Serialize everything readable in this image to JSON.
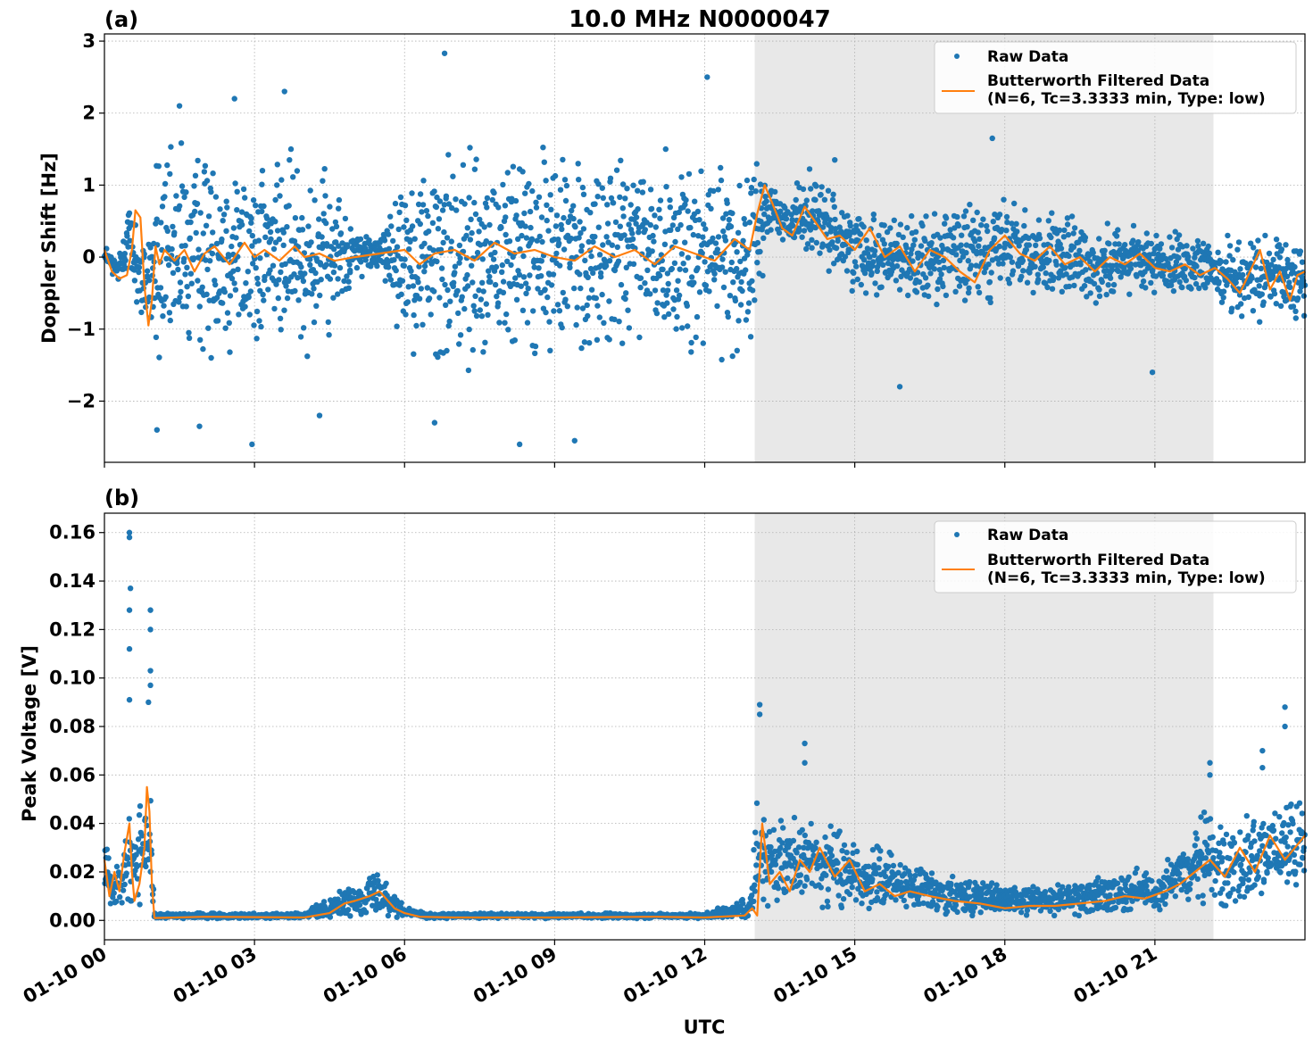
{
  "figure": {
    "title": "10.0 MHz N0000047",
    "xlabel": "UTC",
    "x_tick_labels": [
      "01-10 00",
      "01-10 03",
      "01-10 06",
      "01-10 09",
      "01-10 12",
      "01-10 15",
      "01-10 18",
      "01-10 21"
    ],
    "colors": {
      "raw": "#1f77b4",
      "filtered": "#ff7f0e",
      "shade": "#e8e8e8",
      "grid": "#b0b0b0"
    }
  },
  "chart_data": [
    {
      "panel_label": "(a)",
      "type": "scatter",
      "ylabel": "Doppler Shift [Hz]",
      "x_unit": "hours UTC since 01-10 00",
      "xlim": [
        0,
        24
      ],
      "ylim": [
        -2.85,
        3.1
      ],
      "yticks": [
        -2,
        -1,
        0,
        1,
        2,
        3
      ],
      "ytick_labels": [
        "−2",
        "−1",
        "0",
        "1",
        "2",
        "3"
      ],
      "shaded_x_range": [
        13.0,
        22.17
      ],
      "grid": true,
      "legend_placement": "top-right",
      "legend": [
        "Raw Data",
        "Butterworth Filtered Data",
        "(N=6, Tc=3.3333 min, Type: low)"
      ],
      "series": [
        {
          "name": "Raw Data",
          "style": "points",
          "envelope_x": [
            0,
            0.25,
            0.5,
            0.75,
            1.0,
            1.5,
            2.0,
            3.0,
            4.0,
            4.5,
            5.0,
            5.5,
            6.0,
            6.5,
            7,
            8,
            9,
            10,
            11,
            12,
            12.9,
            13.3,
            13.7,
            14,
            14.5,
            15,
            16,
            17,
            18,
            19,
            20,
            21,
            22,
            23,
            23.99
          ],
          "envelope_lo": [
            -0.1,
            -0.4,
            -0.2,
            -1.0,
            -1.5,
            -1.6,
            -1.4,
            -1.4,
            -1.4,
            -1.2,
            -0.3,
            -0.2,
            -1.3,
            -1.5,
            -1.6,
            -1.5,
            -1.5,
            -1.4,
            -1.3,
            -1.5,
            -1.3,
            0.3,
            0.1,
            0.0,
            -0.2,
            -0.5,
            -0.6,
            -0.7,
            -0.6,
            -0.6,
            -0.7,
            -0.5,
            -0.6,
            -0.9,
            -0.9
          ],
          "envelope_hi": [
            0.2,
            0.0,
            0.8,
            0.2,
            1.4,
            1.6,
            1.5,
            1.5,
            1.5,
            1.2,
            0.4,
            0.3,
            1.3,
            1.6,
            1.6,
            1.6,
            1.5,
            1.5,
            1.5,
            1.5,
            1.4,
            1.1,
            0.8,
            1.3,
            0.9,
            0.7,
            0.6,
            0.7,
            0.8,
            0.6,
            0.5,
            0.4,
            0.3,
            0.3,
            0.3
          ],
          "outliers": [
            {
              "x": 1.05,
              "y": -2.4
            },
            {
              "x": 1.5,
              "y": 2.1
            },
            {
              "x": 1.9,
              "y": -2.35
            },
            {
              "x": 2.6,
              "y": 2.2
            },
            {
              "x": 2.95,
              "y": -2.6
            },
            {
              "x": 3.6,
              "y": 2.3
            },
            {
              "x": 4.3,
              "y": -2.2
            },
            {
              "x": 6.8,
              "y": 2.83
            },
            {
              "x": 6.6,
              "y": -2.3
            },
            {
              "x": 8.3,
              "y": -2.6
            },
            {
              "x": 9.4,
              "y": -2.55
            },
            {
              "x": 12.05,
              "y": 2.5
            },
            {
              "x": 14.6,
              "y": 1.35
            },
            {
              "x": 15.9,
              "y": -1.8
            },
            {
              "x": 17.75,
              "y": 1.65
            },
            {
              "x": 20.95,
              "y": -1.6
            }
          ]
        },
        {
          "name": "Butterworth Filtered Data",
          "style": "line",
          "x": [
            0,
            0.15,
            0.3,
            0.45,
            0.55,
            0.62,
            0.72,
            0.8,
            0.88,
            0.95,
            1.02,
            1.1,
            1.2,
            1.4,
            1.6,
            1.8,
            2.0,
            2.2,
            2.5,
            2.8,
            3.0,
            3.2,
            3.5,
            3.8,
            4.0,
            4.3,
            4.6,
            5.0,
            5.5,
            6.0,
            6.3,
            6.6,
            7.0,
            7.4,
            7.8,
            8.2,
            8.6,
            9.0,
            9.4,
            9.8,
            10.2,
            10.6,
            11.0,
            11.4,
            11.8,
            12.2,
            12.6,
            12.9,
            13.05,
            13.2,
            13.35,
            13.55,
            13.75,
            14.0,
            14.2,
            14.45,
            14.7,
            15.0,
            15.3,
            15.6,
            15.9,
            16.2,
            16.5,
            16.8,
            17.1,
            17.4,
            17.7,
            18.0,
            18.3,
            18.6,
            18.9,
            19.2,
            19.5,
            19.8,
            20.1,
            20.4,
            20.7,
            21.0,
            21.3,
            21.6,
            21.9,
            22.2,
            22.45,
            22.7,
            22.9,
            23.1,
            23.3,
            23.5,
            23.7,
            23.85,
            24.0
          ],
          "y": [
            0.1,
            -0.2,
            -0.3,
            -0.25,
            0.1,
            0.65,
            0.55,
            -0.4,
            -0.95,
            -0.6,
            0.15,
            -0.1,
            0.1,
            -0.05,
            0.1,
            -0.2,
            0.05,
            0.15,
            -0.1,
            0.2,
            0.0,
            0.1,
            -0.05,
            0.15,
            0.0,
            0.05,
            -0.05,
            0.0,
            0.05,
            0.1,
            -0.1,
            0.05,
            0.1,
            -0.05,
            0.2,
            0.05,
            0.1,
            0.0,
            -0.05,
            0.15,
            0.0,
            0.1,
            -0.1,
            0.15,
            0.05,
            -0.05,
            0.25,
            0.1,
            0.6,
            1.0,
            0.75,
            0.4,
            0.3,
            0.7,
            0.5,
            0.25,
            0.3,
            0.1,
            0.4,
            0.0,
            0.15,
            -0.2,
            0.1,
            0.0,
            -0.2,
            -0.35,
            0.1,
            0.3,
            0.05,
            -0.05,
            0.15,
            -0.1,
            0.0,
            -0.2,
            0.0,
            -0.1,
            0.05,
            -0.15,
            -0.2,
            -0.1,
            -0.25,
            -0.15,
            -0.3,
            -0.5,
            -0.2,
            0.1,
            -0.45,
            -0.2,
            -0.6,
            -0.25,
            -0.2
          ]
        }
      ]
    },
    {
      "panel_label": "(b)",
      "type": "scatter",
      "ylabel": "Peak Voltage [V]",
      "x_unit": "hours UTC since 01-10 00",
      "xlim": [
        0,
        24
      ],
      "ylim": [
        -0.008,
        0.168
      ],
      "yticks": [
        0.0,
        0.02,
        0.04,
        0.06,
        0.08,
        0.1,
        0.12,
        0.14,
        0.16
      ],
      "ytick_labels": [
        "0.00",
        "0.02",
        "0.04",
        "0.06",
        "0.08",
        "0.10",
        "0.12",
        "0.14",
        "0.16"
      ],
      "shaded_x_range": [
        13.0,
        22.17
      ],
      "grid": true,
      "legend_placement": "top-right",
      "legend": [
        "Raw Data",
        "Butterworth Filtered Data",
        "(N=6, Tc=3.3333 min, Type: low)"
      ],
      "series": [
        {
          "name": "Raw Data",
          "style": "points",
          "envelope_x": [
            0,
            0.2,
            0.4,
            0.5,
            0.6,
            0.8,
            0.85,
            0.95,
            1.0,
            2,
            4,
            4.5,
            5.0,
            5.5,
            6.0,
            6.5,
            9,
            12,
            12.9,
            13.05,
            13.3,
            13.6,
            14.0,
            14.5,
            15,
            15.5,
            16,
            17,
            18,
            19,
            20,
            20.5,
            21,
            21.5,
            22,
            22.5,
            23,
            23.5,
            23.99
          ],
          "envelope_lo": [
            0.005,
            0.005,
            0.005,
            0.005,
            0.005,
            0.008,
            0.008,
            0.003,
            0.0008,
            0.0008,
            0.0008,
            0.001,
            0.002,
            0.002,
            0.001,
            0.0008,
            0.0008,
            0.0008,
            0.0008,
            0.005,
            0.005,
            0.005,
            0.005,
            0.005,
            0.004,
            0.003,
            0.003,
            0.002,
            0.002,
            0.002,
            0.002,
            0.003,
            0.003,
            0.004,
            0.004,
            0.005,
            0.006,
            0.01,
            0.012
          ],
          "envelope_hi": [
            0.04,
            0.025,
            0.03,
            0.045,
            0.035,
            0.065,
            0.07,
            0.045,
            0.003,
            0.003,
            0.003,
            0.01,
            0.015,
            0.022,
            0.006,
            0.003,
            0.003,
            0.003,
            0.01,
            0.05,
            0.045,
            0.04,
            0.045,
            0.04,
            0.035,
            0.03,
            0.025,
            0.02,
            0.015,
            0.015,
            0.018,
            0.022,
            0.02,
            0.03,
            0.045,
            0.04,
            0.045,
            0.05,
            0.048
          ],
          "outliers": [
            {
              "x": 0.5,
              "y": 0.16
            },
            {
              "x": 0.5,
              "y": 0.158
            },
            {
              "x": 0.52,
              "y": 0.137
            },
            {
              "x": 0.5,
              "y": 0.128
            },
            {
              "x": 0.5,
              "y": 0.112
            },
            {
              "x": 0.5,
              "y": 0.091
            },
            {
              "x": 0.92,
              "y": 0.128
            },
            {
              "x": 0.92,
              "y": 0.12
            },
            {
              "x": 0.92,
              "y": 0.103
            },
            {
              "x": 0.92,
              "y": 0.097
            },
            {
              "x": 0.88,
              "y": 0.09
            },
            {
              "x": 13.1,
              "y": 0.089
            },
            {
              "x": 13.1,
              "y": 0.085
            },
            {
              "x": 14.0,
              "y": 0.073
            },
            {
              "x": 14.0,
              "y": 0.065
            },
            {
              "x": 22.1,
              "y": 0.065
            },
            {
              "x": 22.1,
              "y": 0.06
            },
            {
              "x": 23.15,
              "y": 0.07
            },
            {
              "x": 23.15,
              "y": 0.063
            },
            {
              "x": 23.6,
              "y": 0.088
            },
            {
              "x": 23.6,
              "y": 0.08
            }
          ]
        },
        {
          "name": "Butterworth Filtered Data",
          "style": "line",
          "x": [
            0,
            0.1,
            0.2,
            0.3,
            0.4,
            0.5,
            0.55,
            0.6,
            0.7,
            0.8,
            0.85,
            0.9,
            0.95,
            1.0,
            2,
            4,
            4.5,
            4.8,
            5.0,
            5.3,
            5.5,
            5.8,
            6.0,
            6.3,
            7,
            9,
            11,
            12,
            12.8,
            12.95,
            13.05,
            13.15,
            13.3,
            13.5,
            13.7,
            13.9,
            14.1,
            14.3,
            14.6,
            14.9,
            15.2,
            15.5,
            15.8,
            16.1,
            16.5,
            17,
            17.5,
            18,
            18.5,
            19,
            19.5,
            20,
            20.4,
            20.8,
            21.2,
            21.5,
            21.8,
            22.1,
            22.4,
            22.7,
            23.0,
            23.3,
            23.6,
            23.8,
            24.0
          ],
          "y": [
            0.025,
            0.01,
            0.02,
            0.012,
            0.028,
            0.04,
            0.02,
            0.008,
            0.015,
            0.03,
            0.055,
            0.045,
            0.015,
            0.001,
            0.0015,
            0.0012,
            0.003,
            0.007,
            0.008,
            0.01,
            0.012,
            0.005,
            0.003,
            0.0015,
            0.0012,
            0.0012,
            0.0015,
            0.0012,
            0.002,
            0.005,
            0.002,
            0.04,
            0.015,
            0.02,
            0.012,
            0.025,
            0.02,
            0.03,
            0.018,
            0.025,
            0.012,
            0.015,
            0.01,
            0.012,
            0.01,
            0.008,
            0.007,
            0.005,
            0.006,
            0.006,
            0.007,
            0.008,
            0.01,
            0.009,
            0.012,
            0.015,
            0.02,
            0.025,
            0.018,
            0.03,
            0.02,
            0.035,
            0.025,
            0.03,
            0.035
          ]
        }
      ]
    }
  ]
}
